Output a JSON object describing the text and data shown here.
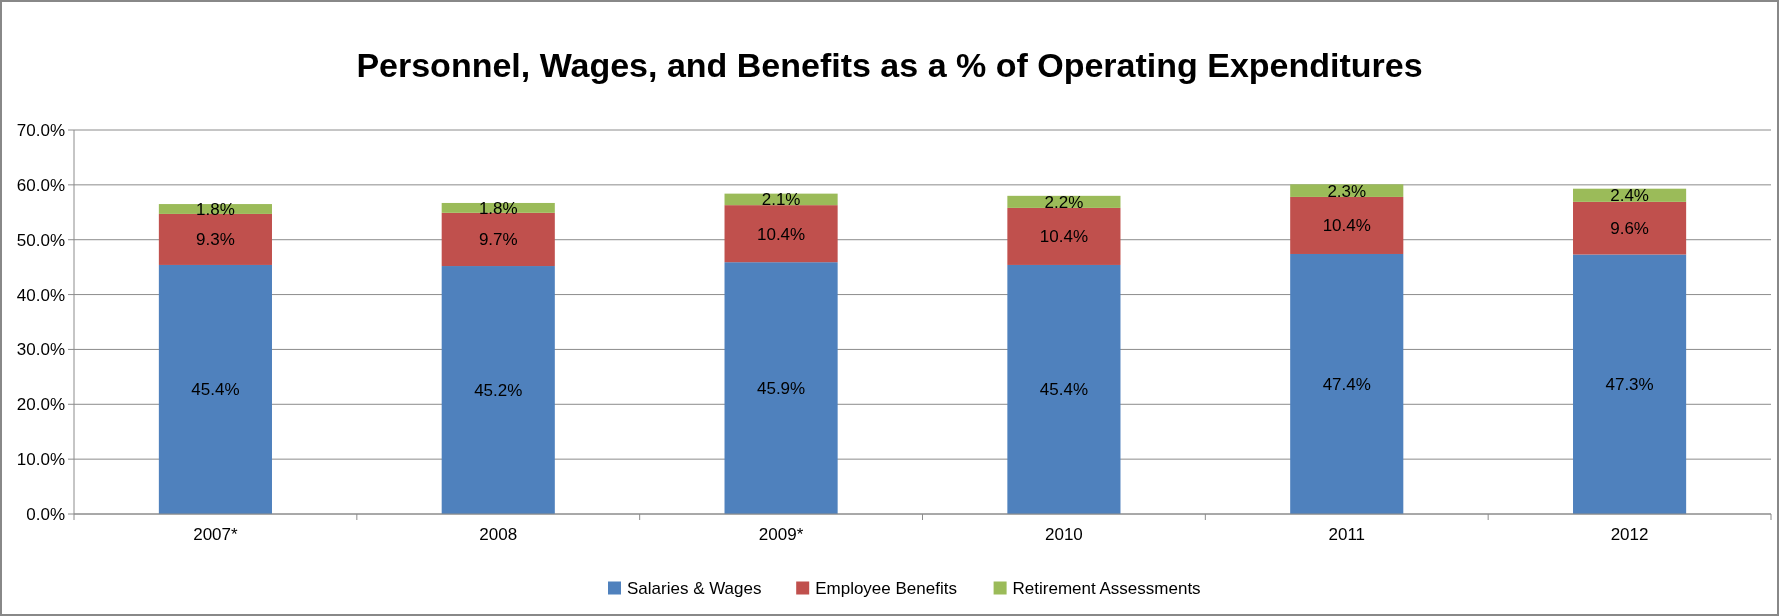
{
  "chart_data": {
    "type": "bar",
    "title": "Personnel, Wages, and Benefits as a % of Operating Expenditures",
    "categories": [
      "2007*",
      "2008",
      "2009*",
      "2010",
      "2011",
      "2012"
    ],
    "stacked": true,
    "series": [
      {
        "name": "Salaries & Wages",
        "color": "#4f81bd",
        "values": [
          45.4,
          45.2,
          45.9,
          45.4,
          47.4,
          47.3
        ],
        "value_labels": [
          "45.4%",
          "45.2%",
          "45.9%",
          "45.4%",
          "47.4%",
          "47.3%"
        ]
      },
      {
        "name": "Employee Benefits",
        "color": "#c0504d",
        "values": [
          9.3,
          9.7,
          10.4,
          10.4,
          10.4,
          9.6
        ],
        "value_labels": [
          "9.3%",
          "9.7%",
          "10.4%",
          "10.4%",
          "10.4%",
          "9.6%"
        ]
      },
      {
        "name": "Retirement Assessments",
        "color": "#9bbb59",
        "values": [
          1.8,
          1.8,
          2.1,
          2.2,
          2.3,
          2.4
        ],
        "value_labels": [
          "1.8%",
          "1.8%",
          "2.1%",
          "2.2%",
          "2.3%",
          "2.4%"
        ]
      }
    ],
    "ylim": [
      0,
      70
    ],
    "yticks": [
      {
        "value": 0,
        "label": "0.0%"
      },
      {
        "value": 10,
        "label": "10.0%"
      },
      {
        "value": 20,
        "label": "20.0%"
      },
      {
        "value": 30,
        "label": "30.0%"
      },
      {
        "value": 40,
        "label": "40.0%"
      },
      {
        "value": 50,
        "label": "50.0%"
      },
      {
        "value": 60,
        "label": "60.0%"
      },
      {
        "value": 70,
        "label": "70.0%"
      }
    ],
    "grid": "y",
    "legend": "bottom"
  }
}
